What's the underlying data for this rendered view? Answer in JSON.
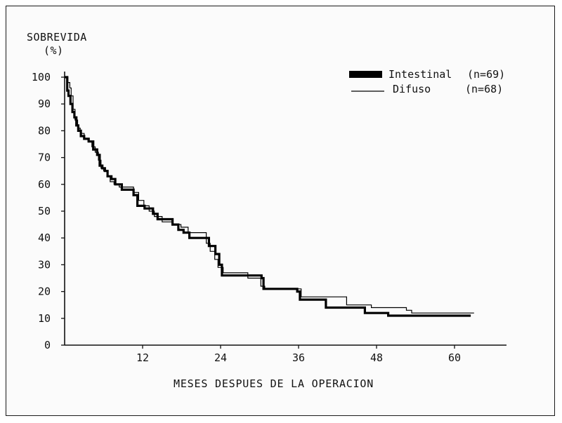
{
  "chart_data": {
    "type": "line",
    "step": true,
    "ylabel_line1": "SOBREVIDA",
    "ylabel_line2": "(%)",
    "xlabel": "MESES DESPUES DE LA OPERACION",
    "xlim": [
      0,
      68
    ],
    "ylim": [
      0,
      100
    ],
    "xticks": [
      12,
      24,
      36,
      48,
      60
    ],
    "yticks": [
      0,
      10,
      20,
      30,
      40,
      50,
      60,
      70,
      80,
      90,
      100
    ],
    "legend_position": "top-right",
    "series": [
      {
        "name": "Intestinal",
        "n_label": "(n=69)",
        "color": "#000000",
        "style": "thick",
        "x": [
          0,
          0.4,
          0.6,
          0.9,
          1.2,
          1.5,
          1.8,
          2.1,
          2.5,
          3.0,
          3.7,
          4.4,
          5.0,
          5.4,
          5.8,
          6.2,
          6.6,
          7.2,
          7.8,
          8.8,
          10.6,
          11.2,
          12.3,
          13.6,
          14.3,
          16.6,
          17.5,
          18.3,
          19.2,
          22.2,
          23.2,
          23.8,
          24.2,
          30.3,
          30.6,
          35.8,
          36.2,
          40.2,
          46.2,
          49.8,
          62.5
        ],
        "y": [
          100,
          95,
          93,
          90,
          87,
          85,
          82,
          80,
          78,
          77,
          76,
          73,
          71,
          67,
          66,
          65,
          63,
          62,
          60,
          58,
          56,
          52,
          51,
          49,
          47,
          45,
          43,
          42,
          40,
          37,
          34,
          30,
          26,
          25,
          21,
          20,
          17,
          14,
          12,
          11,
          11
        ]
      },
      {
        "name": "Difuso",
        "n_label": "(n=68)",
        "color": "#000000",
        "style": "thin",
        "x": [
          0,
          0.5,
          0.8,
          1.0,
          1.3,
          1.6,
          2.0,
          2.4,
          3.0,
          3.6,
          4.2,
          4.7,
          5.2,
          5.6,
          6.0,
          6.5,
          7.0,
          7.6,
          8.4,
          10.6,
          11.4,
          12.2,
          13.0,
          13.8,
          15.0,
          16.6,
          17.9,
          19.0,
          21.8,
          22.4,
          23.1,
          23.6,
          24.4,
          28.2,
          30.2,
          30.8,
          36.4,
          43.4,
          47.2,
          52.6,
          53.4,
          63.0
        ],
        "y": [
          100,
          98,
          96,
          93,
          88,
          84,
          81,
          79,
          77,
          76,
          74,
          72,
          69,
          66,
          65,
          63,
          61,
          60,
          59,
          57,
          54,
          52,
          50,
          48,
          46,
          45,
          44,
          42,
          38,
          35,
          32,
          29,
          27,
          25,
          22,
          21,
          18,
          15,
          14,
          13,
          12,
          12
        ]
      }
    ]
  }
}
